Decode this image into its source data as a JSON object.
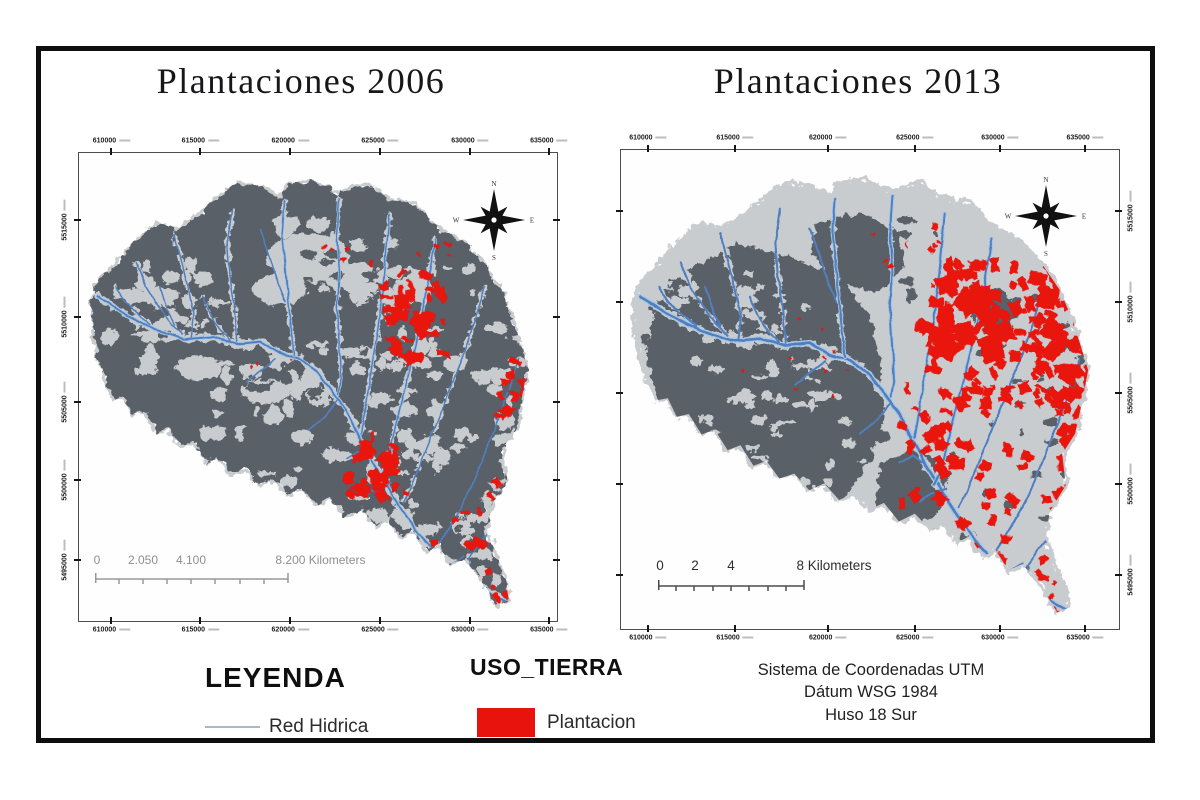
{
  "maps": [
    {
      "title": "Plantaciones 2006",
      "x_ticks": [
        "610000",
        "615000",
        "620000",
        "625000",
        "630000",
        "635000"
      ],
      "y_ticks": [
        "5515000",
        "5510000",
        "5505000",
        "5500000",
        "5495000"
      ],
      "scale_labels": [
        "0",
        "2.050",
        "4.100",
        "8.200 Kilometers"
      ],
      "compass_letters": {
        "n": "N",
        "e": "E",
        "s": "S",
        "w": "W"
      }
    },
    {
      "title": "Plantaciones 2013",
      "x_ticks": [
        "610000",
        "615000",
        "620000",
        "625000",
        "630000",
        "635000"
      ],
      "y_ticks": [
        "5515000",
        "5510000",
        "5505000",
        "5500000",
        "5495000"
      ],
      "scale_labels": [
        "0",
        "2",
        "4",
        "8 Kilometers"
      ],
      "compass_letters": {
        "n": "N",
        "e": "E",
        "s": "S",
        "w": "W"
      }
    }
  ],
  "legend": {
    "title": "LEYENDA",
    "river_label": "Red Hidrica",
    "land_use_title": "USO_TIERRA",
    "plantation_label": "Plantacion"
  },
  "projection_note": {
    "lines": [
      "Sistema de Coordenadas UTM",
      "Dátum WSG 1984",
      "Huso 18 Sur"
    ]
  },
  "colors": {
    "plantation_red": "#e8130c",
    "river_blue": "#4f7fc0",
    "river_light": "#a9c6e2",
    "dark_land": "#5a6068",
    "light_land": "#c9cccf",
    "legend_line": "#a5bcc6",
    "frame": "#4d4d4d",
    "scale_text_left": "#8f8f8f",
    "scale_text_right": "#2e2e2e"
  }
}
